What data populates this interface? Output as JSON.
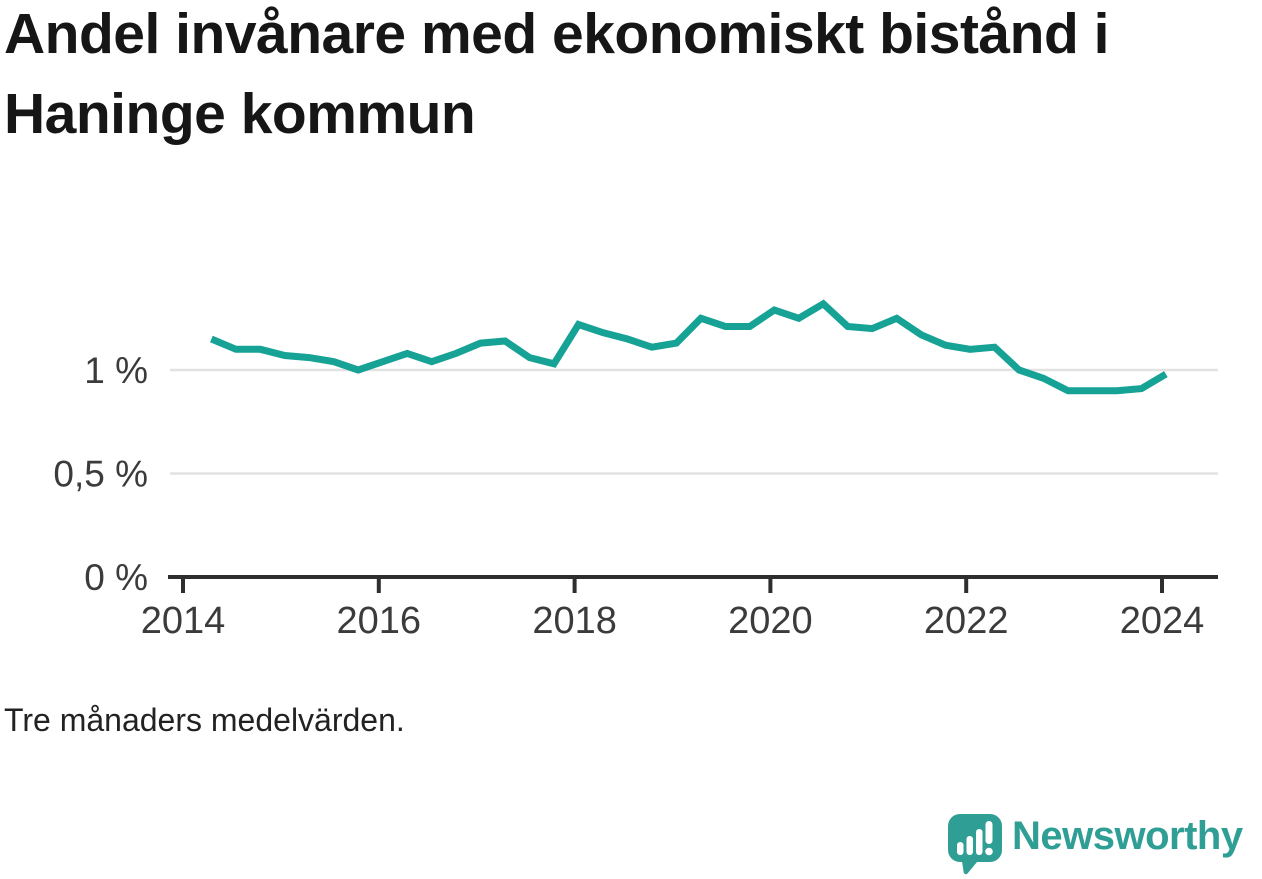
{
  "title": "Andel invånare med ekonomiskt bistånd i Haninge kommun",
  "footnote": "Tre månaders medelvärden.",
  "branding": {
    "text": "Newsworthy",
    "logo_icon": "newsworthy-speech-bubble-bar-chart-icon"
  },
  "colors": {
    "background": "#ffffff",
    "title_text": "#161616",
    "axis_text": "#3b3b3b",
    "axis_line": "#2e2e2e",
    "gridline": "#e2e2e2",
    "line": "#17a296",
    "brand": "#2f9e94"
  },
  "chart_data": {
    "type": "line",
    "title": "Andel invånare med ekonomiskt bistånd i Haninge kommun",
    "note": "Tre månaders medelvärden.",
    "series_name": "Andel invånare med ekonomiskt bistånd, Haninge kommun",
    "unit": "%",
    "grid": "horizontal",
    "legend": "none",
    "xlim": [
      2013.85,
      2024.55
    ],
    "ylim": [
      0,
      1.45
    ],
    "x": [
      2014.29,
      2014.54,
      2014.79,
      2015.04,
      2015.29,
      2015.54,
      2015.79,
      2016.04,
      2016.29,
      2016.54,
      2016.79,
      2017.04,
      2017.29,
      2017.54,
      2017.79,
      2018.04,
      2018.29,
      2018.54,
      2018.79,
      2019.04,
      2019.29,
      2019.54,
      2019.79,
      2020.04,
      2020.29,
      2020.54,
      2020.79,
      2021.04,
      2021.29,
      2021.54,
      2021.79,
      2022.04,
      2022.29,
      2022.54,
      2022.79,
      2023.04,
      2023.29,
      2023.54,
      2023.79,
      2024.04
    ],
    "values": [
      1.15,
      1.1,
      1.1,
      1.07,
      1.06,
      1.04,
      1.0,
      1.04,
      1.08,
      1.04,
      1.08,
      1.13,
      1.14,
      1.06,
      1.03,
      1.22,
      1.18,
      1.15,
      1.11,
      1.13,
      1.25,
      1.21,
      1.21,
      1.29,
      1.25,
      1.32,
      1.21,
      1.2,
      1.25,
      1.17,
      1.12,
      1.1,
      1.11,
      1.0,
      0.96,
      0.9,
      0.9,
      0.9,
      0.91,
      0.98
    ],
    "y_ticks": [
      {
        "label": "0 %",
        "value": 0
      },
      {
        "label": "0,5 %",
        "value": 0.5
      },
      {
        "label": "1 %",
        "value": 1
      }
    ],
    "x_ticks": [
      {
        "label": "2014",
        "value": 2014
      },
      {
        "label": "2016",
        "value": 2016
      },
      {
        "label": "2018",
        "value": 2018
      },
      {
        "label": "2020",
        "value": 2020
      },
      {
        "label": "2022",
        "value": 2022
      },
      {
        "label": "2024",
        "value": 2024
      }
    ]
  }
}
